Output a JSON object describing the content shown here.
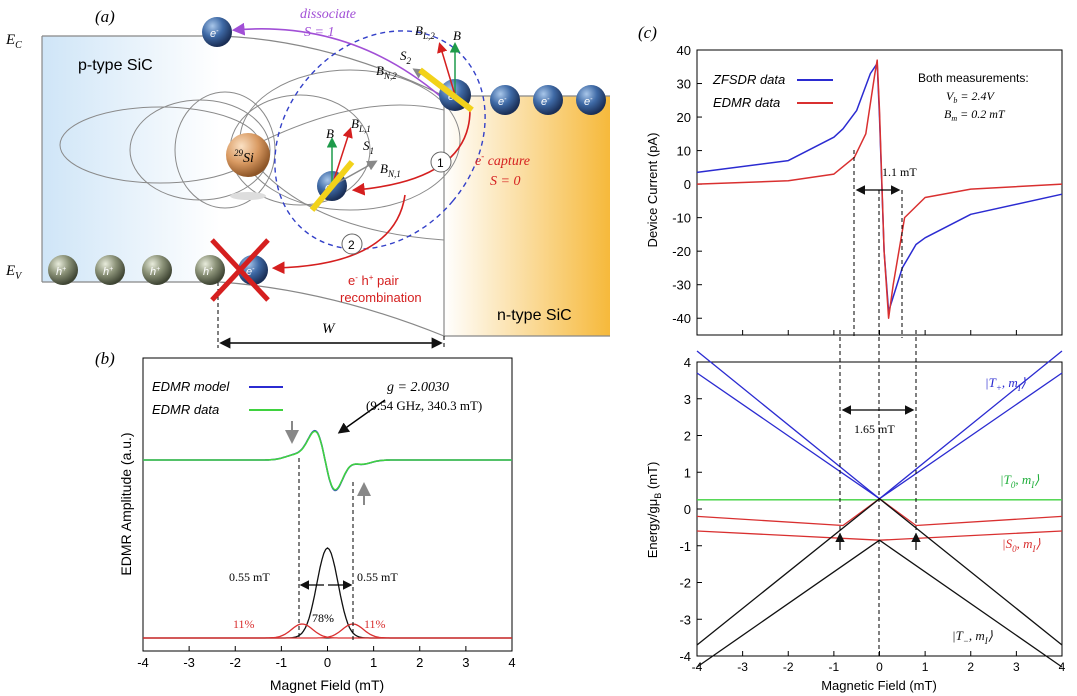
{
  "panel_a": {
    "label": "(a)",
    "ec_label": "E",
    "ec_sub": "C",
    "ev_label": "E",
    "ev_sub": "V",
    "p_region": "p-type SiC",
    "n_region": "n-type SiC",
    "si_label": "Si",
    "si_mass": "29",
    "electron": "e",
    "hole": "h",
    "charge_minus": "-",
    "charge_plus": "+",
    "dissociate": "dissociate",
    "dissociate_spin": "S = 1",
    "capture": "e",
    "capture_rest": " capture",
    "capture_spin": "S = 0",
    "recomb_1": "e",
    "recomb_1b": " h",
    "recomb_1c": " pair",
    "recomb_2": "recombination",
    "step1": "1",
    "step2": "2",
    "width_label": "W",
    "b": "B",
    "bl2": "B",
    "bl2_sub": "L,2",
    "bn2": "B",
    "bn2_sub": "N,2",
    "s2": "S",
    "s2_sub": "2",
    "bl1": "B",
    "bl1_sub": "L,1",
    "bn1": "B",
    "bn1_sub": "N,1",
    "s1": "S",
    "s1_sub": "1",
    "colors": {
      "p_fill": "#d6e9f8",
      "n_fill": "#f7c04a",
      "dissociate": "#a14fd6",
      "recomb": "#d51f1f",
      "ellipse": "#3340c8"
    }
  },
  "panel_b": {
    "label": "(b)",
    "legend_model": "EDMR model",
    "legend_data": "EDMR data",
    "g_text": "g = 2.0030",
    "g_sub": "(9.54 GHz, 340.3 mT)",
    "width_left": "0.55 mT",
    "width_right": "0.55 mT",
    "pct_left": "11%",
    "pct_center": "78%",
    "pct_right": "11%",
    "ylabel": "EDMR Amplitude (a.u.)",
    "xlabel": "Magnet Field (mT)",
    "xticks": [
      "-4",
      "-3",
      "-2",
      "-1",
      "0",
      "1",
      "2",
      "3",
      "4"
    ],
    "colors": {
      "model": "#2b2bd1",
      "data": "#3fd23f",
      "gauss_center": "#111111",
      "gauss_side": "#d93030"
    }
  },
  "panel_c": {
    "label": "(c)",
    "legend_zfsdr": "ZFSDR data",
    "legend_edmr": "EDMR data",
    "note_title": "Both measurements:",
    "note_vb": "V",
    "note_vb_sub": "b",
    "note_vb_val": " = 2.4V",
    "note_bm": "B",
    "note_bm_sub": "m",
    "note_bm_val": " = 0.2 mT",
    "width_top": "1.1 mT",
    "width_bottom": "1.65 mT",
    "top_ylabel": "Device Current (pA)",
    "top_yticks": [
      "40",
      "30",
      "20",
      "10",
      "0",
      "-10",
      "-20",
      "-30",
      "-40"
    ],
    "bottom_ylabel": "Energy/gμ",
    "bottom_ylabel_sub": "B",
    "bottom_ylabel_unit": " (mT)",
    "bottom_yticks": [
      "4",
      "3",
      "2",
      "1",
      "0",
      "-1",
      "-2",
      "-3",
      "-4"
    ],
    "xlabel": "Magnetic Field (mT)",
    "xticks": [
      "-4",
      "-3",
      "-2",
      "-1",
      "0",
      "1",
      "2",
      "3",
      "4"
    ],
    "state_tp": "|T",
    "state_tp_sub": "+",
    "state_t0": "|T",
    "state_t0_sub": "0",
    "state_s0": "|S",
    "state_s0_sub": "0",
    "state_tm": "|T",
    "state_tm_sub": "−",
    "state_tail": ", m",
    "state_tail_sub": "I",
    "state_close": "⟩",
    "colors": {
      "zfsdr": "#2b2bd1",
      "edmr": "#d93030",
      "tplus": "#2b2bd1",
      "t0": "#3fd23f",
      "s0": "#d93030",
      "tminus": "#111111"
    }
  },
  "chart_data": [
    {
      "type": "line",
      "panel": "(b)",
      "xlabel": "Magnet Field (mT)",
      "ylabel": "EDMR Amplitude (a.u.)",
      "xlim": [
        -4,
        4
      ],
      "series": [
        {
          "name": "EDMR model",
          "x": [
            -4,
            -1,
            -0.55,
            -0.3,
            -0.05,
            0.1,
            0.15,
            0.3,
            0.55,
            1,
            4
          ],
          "y": [
            0,
            0.02,
            0.1,
            0.55,
            1.0,
            -0.2,
            -1.0,
            -0.6,
            -0.1,
            -0.02,
            0
          ]
        },
        {
          "name": "EDMR data",
          "x": [
            -4,
            -1,
            -0.55,
            -0.3,
            -0.05,
            0.1,
            0.15,
            0.3,
            0.55,
            1,
            4
          ],
          "y": [
            0,
            0.02,
            0.1,
            0.55,
            0.98,
            -0.2,
            -1.0,
            -0.6,
            -0.1,
            -0.02,
            0
          ]
        }
      ],
      "annotations": [
        "g = 2.0030",
        "(9.54 GHz, 340.3 mT)",
        "0.55 mT",
        "0.55 mT",
        "11%",
        "78%",
        "11%"
      ]
    },
    {
      "type": "line",
      "panel": "(c) top",
      "xlabel": "Magnetic Field (mT)",
      "ylabel": "Device Current (pA)",
      "xlim": [
        -4,
        4
      ],
      "ylim": [
        -45,
        40
      ],
      "series": [
        {
          "name": "ZFSDR data",
          "x": [
            -4,
            -2,
            -1,
            -0.8,
            -0.5,
            -0.2,
            -0.05,
            0,
            0.1,
            0.2,
            0.5,
            0.8,
            1,
            2,
            4
          ],
          "y": [
            3.5,
            7,
            14,
            16.5,
            22,
            33,
            36,
            20,
            -20,
            -38,
            -25,
            -18,
            -16,
            -9,
            -3
          ]
        },
        {
          "name": "EDMR data",
          "x": [
            -4,
            -2,
            -1,
            -0.55,
            -0.3,
            -0.1,
            -0.05,
            0,
            0.1,
            0.2,
            0.3,
            0.55,
            1,
            2,
            4
          ],
          "y": [
            0,
            1,
            3,
            8,
            15,
            33,
            37,
            22,
            -20,
            -40,
            -30,
            -10,
            -4,
            -1.5,
            0
          ]
        }
      ],
      "annotations": [
        "1.1 mT",
        "Both measurements:",
        "V_b = 2.4V",
        "B_m = 0.2 mT"
      ]
    },
    {
      "type": "line",
      "panel": "(c) bottom",
      "xlabel": "Magnetic Field (mT)",
      "ylabel": "Energy/gμ_B (mT)",
      "xlim": [
        -4,
        4
      ],
      "ylim": [
        -4,
        4
      ],
      "series": [
        {
          "name": "|T+, mI⟩",
          "x": [
            -4,
            0,
            4
          ],
          "y": [
            4.3,
            0.28,
            4.3
          ]
        },
        {
          "name": "|T+, mI⟩",
          "x": [
            -4,
            0,
            4
          ],
          "y": [
            3.7,
            0.28,
            3.7
          ]
        },
        {
          "name": "|T0, mI⟩",
          "x": [
            -4,
            4
          ],
          "y": [
            0.25,
            0.25
          ]
        },
        {
          "name": "|S0, mI⟩",
          "x": [
            -4,
            -0.8,
            0,
            0.8,
            4
          ],
          "y": [
            -0.2,
            -0.45,
            0.28,
            -0.45,
            -0.2
          ]
        },
        {
          "name": "|S0, mI⟩",
          "x": [
            -4,
            0,
            4
          ],
          "y": [
            -0.6,
            -0.85,
            -0.6
          ]
        },
        {
          "name": "|T−, mI⟩",
          "x": [
            -4,
            0,
            4
          ],
          "y": [
            -3.7,
            0.28,
            -3.7
          ]
        },
        {
          "name": "|T−, mI⟩",
          "x": [
            -4,
            0,
            4
          ],
          "y": [
            -4.3,
            -0.85,
            -4.3
          ]
        }
      ],
      "annotations": [
        "1.65 mT"
      ]
    }
  ]
}
